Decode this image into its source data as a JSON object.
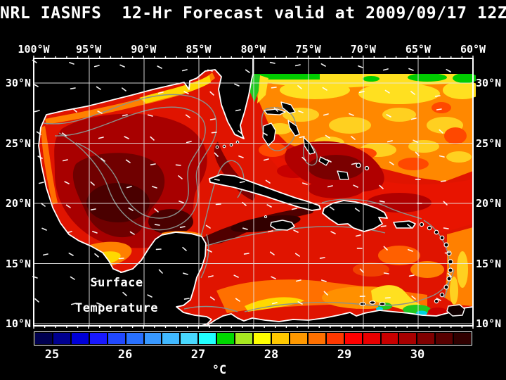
{
  "title": "NRL IASNFS  12-Hr Forecast valid at 2009/09/17 12Z",
  "map": {
    "top_axis_labels": [
      "100°W",
      "95°W",
      "90°W",
      "85°W",
      "80°W",
      "75°W",
      "70°W",
      "65°W",
      "60°W"
    ],
    "left_axis_labels": [
      "30°N",
      "25°N",
      "20°N",
      "15°N",
      "10°N"
    ],
    "right_axis_labels": [
      "30°N",
      "25°N",
      "20°N",
      "15°N",
      "10°N"
    ],
    "annotation_line1": "Surface",
    "annotation_line2": "Temperature"
  },
  "colorbar": {
    "unit": "°C",
    "tick_labels": [
      "25",
      "26",
      "27",
      "28",
      "29",
      "30"
    ],
    "cell_colors": [
      "#000050",
      "#000090",
      "#0000d8",
      "#1818ff",
      "#2048ff",
      "#2870ff",
      "#3898ff",
      "#40b8ff",
      "#48d8ff",
      "#20ffff",
      "#00d800",
      "#a8e820",
      "#ffff00",
      "#ffc800",
      "#ff9800",
      "#ff7000",
      "#ff3800",
      "#ff0000",
      "#e80000",
      "#c80000",
      "#a80000",
      "#800000",
      "#580000",
      "#300000"
    ]
  },
  "colors": {
    "background": "#000000",
    "text": "#ffffff",
    "grid": "#e8e8e8",
    "contour": "#8a918d",
    "coastline": "#ffffff",
    "land": "#000000",
    "sea_base_red": "#e01400"
  }
}
